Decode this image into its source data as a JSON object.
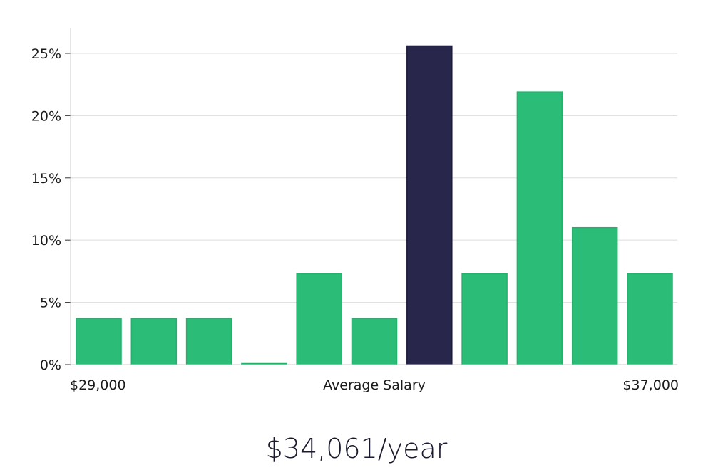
{
  "chart_data": {
    "type": "bar",
    "ylim": [
      0,
      27
    ],
    "yticks": [
      "0%",
      "5%",
      "10%",
      "15%",
      "20%",
      "25%"
    ],
    "ytick_values": [
      0,
      5,
      10,
      15,
      20,
      25
    ],
    "values": [
      3.7,
      3.7,
      3.7,
      0,
      7.3,
      3.7,
      25.6,
      7.3,
      21.9,
      11.0,
      7.3
    ],
    "highlight_index": 6,
    "x_start_label": "$29,000",
    "x_end_label": "$37,000",
    "xlabel": "Average Salary",
    "grid": true,
    "colors": {
      "bar": "#2bbd77",
      "highlight": "#28264a",
      "grid": "#dddddd",
      "axis": "#cccccc"
    }
  },
  "salary_readout": "$34,061/year"
}
